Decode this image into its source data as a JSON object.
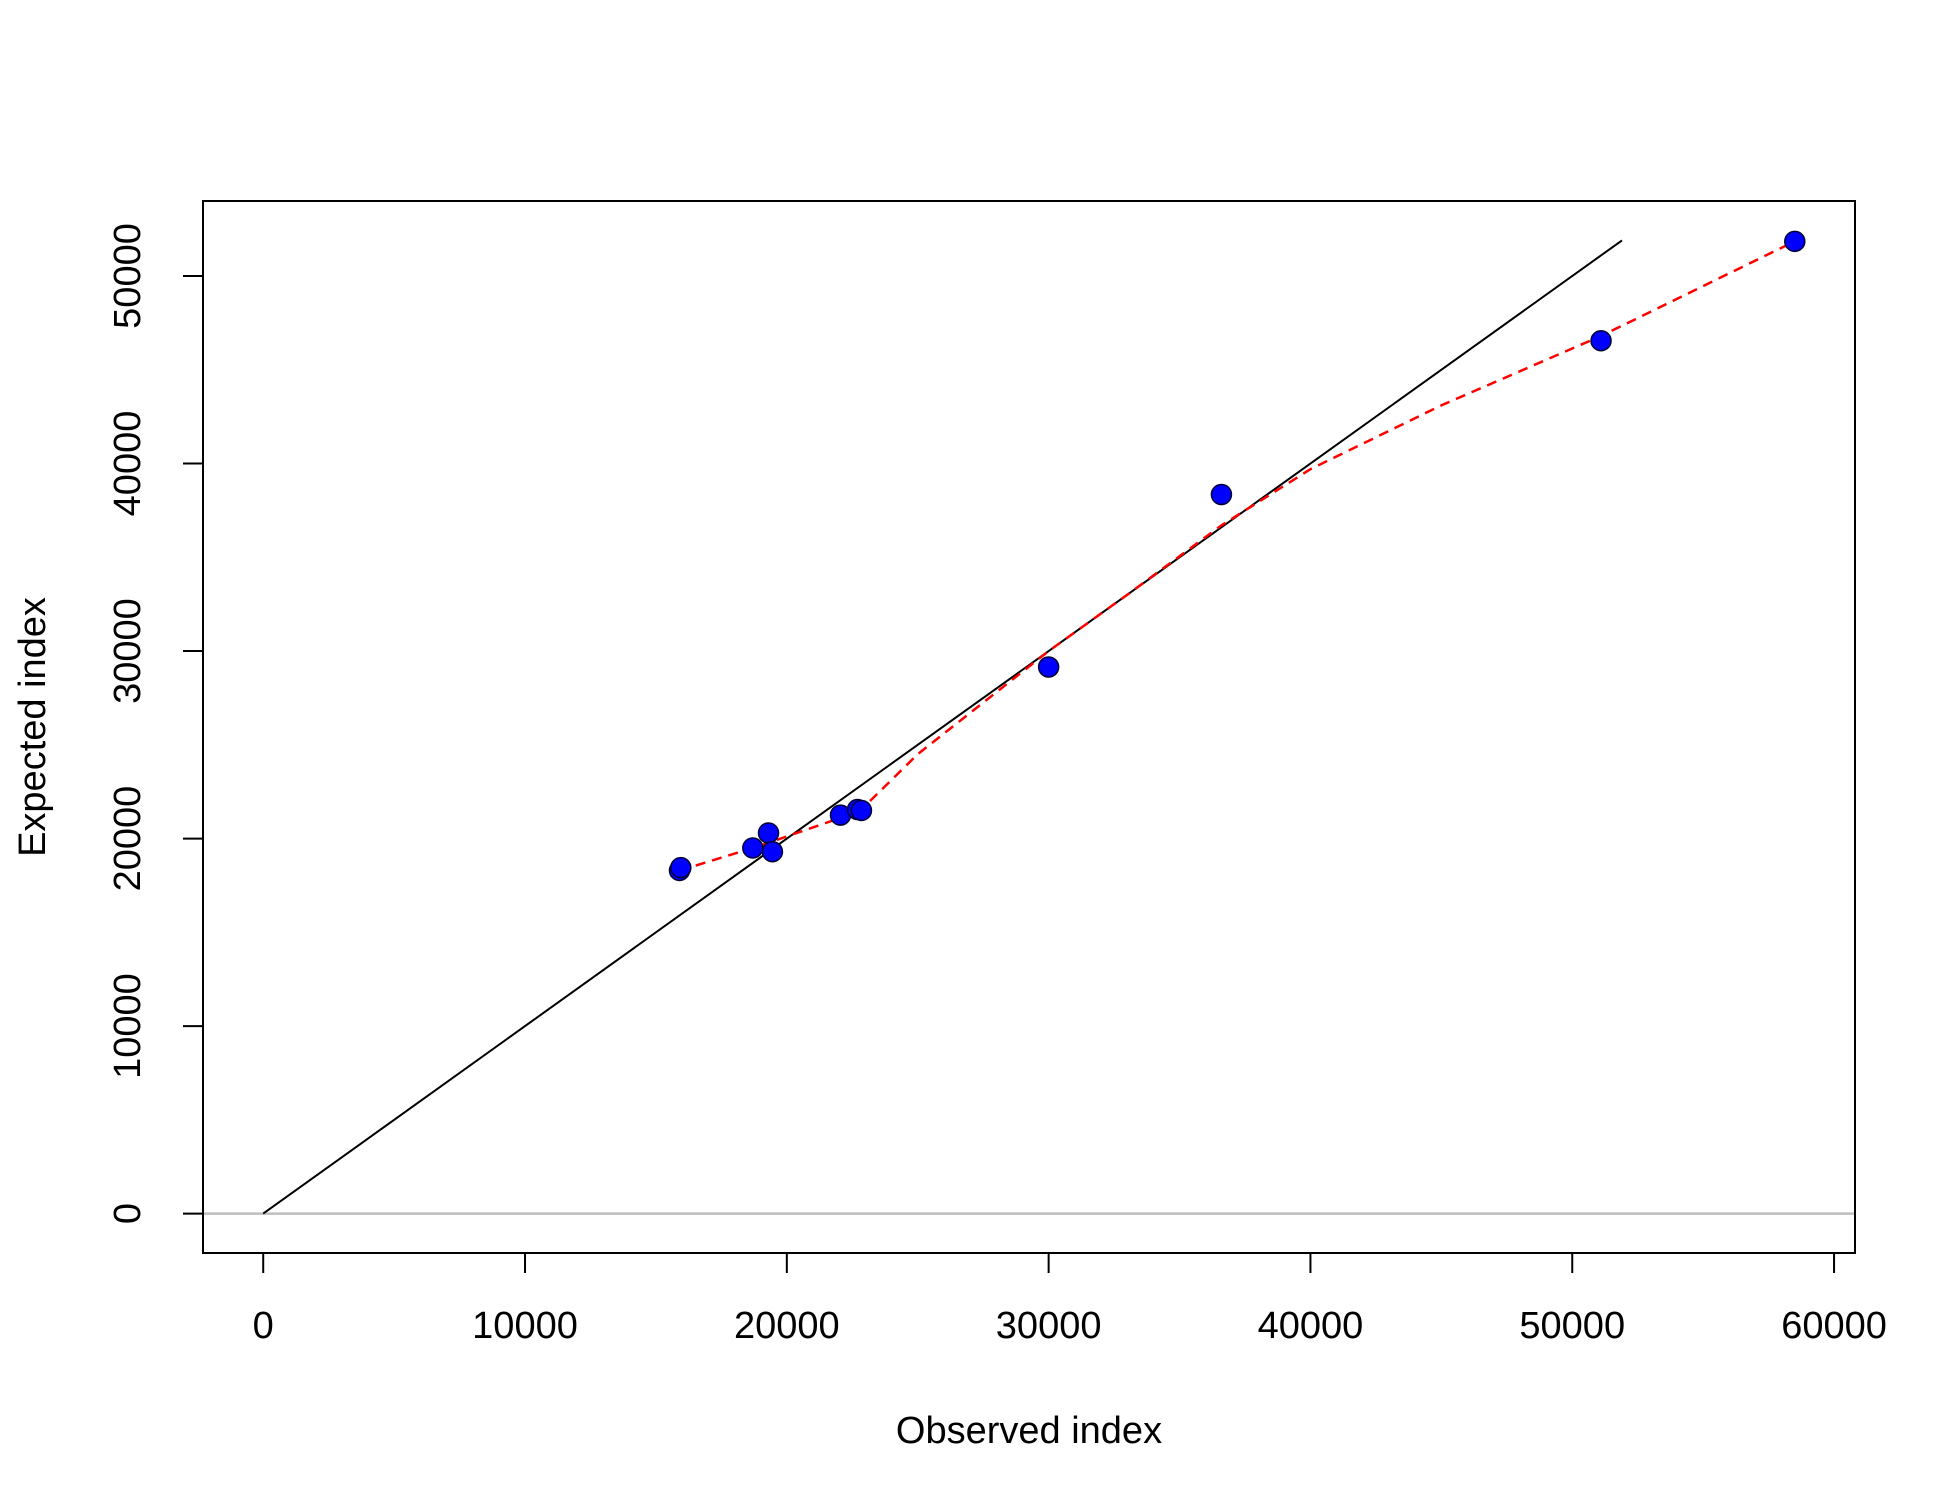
{
  "chart_data": {
    "type": "scatter",
    "xlabel": "Observed index",
    "ylabel": "Expected index",
    "xlim": [
      -2300,
      60800
    ],
    "ylim": [
      -2100,
      54000
    ],
    "x_ticks": [
      0,
      10000,
      20000,
      30000,
      40000,
      50000,
      60000
    ],
    "y_ticks": [
      0,
      10000,
      20000,
      30000,
      40000,
      50000
    ],
    "grid": false,
    "points": [
      {
        "x": 15900,
        "y": 18300
      },
      {
        "x": 15950,
        "y": 18450
      },
      {
        "x": 18700,
        "y": 19500
      },
      {
        "x": 19300,
        "y": 20300
      },
      {
        "x": 19450,
        "y": 19300
      },
      {
        "x": 22050,
        "y": 21250
      },
      {
        "x": 22700,
        "y": 21550
      },
      {
        "x": 22850,
        "y": 21500
      },
      {
        "x": 30000,
        "y": 29150
      },
      {
        "x": 36600,
        "y": 38350
      },
      {
        "x": 51100,
        "y": 46550
      },
      {
        "x": 58500,
        "y": 51850
      }
    ],
    "identity_line": {
      "from": [
        0,
        0
      ],
      "to": [
        51900,
        51900
      ]
    },
    "smooth_line": [
      [
        15900,
        18300
      ],
      [
        18700,
        19500
      ],
      [
        19450,
        19850
      ],
      [
        22050,
        21100
      ],
      [
        22850,
        21550
      ],
      [
        25000,
        24500
      ],
      [
        28000,
        27800
      ],
      [
        30000,
        30000
      ],
      [
        33000,
        33000
      ],
      [
        36600,
        36700
      ],
      [
        40000,
        39700
      ],
      [
        45000,
        43100
      ],
      [
        51100,
        46800
      ],
      [
        58500,
        51850
      ]
    ],
    "hline": 0,
    "colors": {
      "points_fill": "#0000ff",
      "points_stroke": "#000033",
      "identity_line": "#000000",
      "smooth_line": "#ff0000",
      "hline": "#bebebe"
    }
  }
}
